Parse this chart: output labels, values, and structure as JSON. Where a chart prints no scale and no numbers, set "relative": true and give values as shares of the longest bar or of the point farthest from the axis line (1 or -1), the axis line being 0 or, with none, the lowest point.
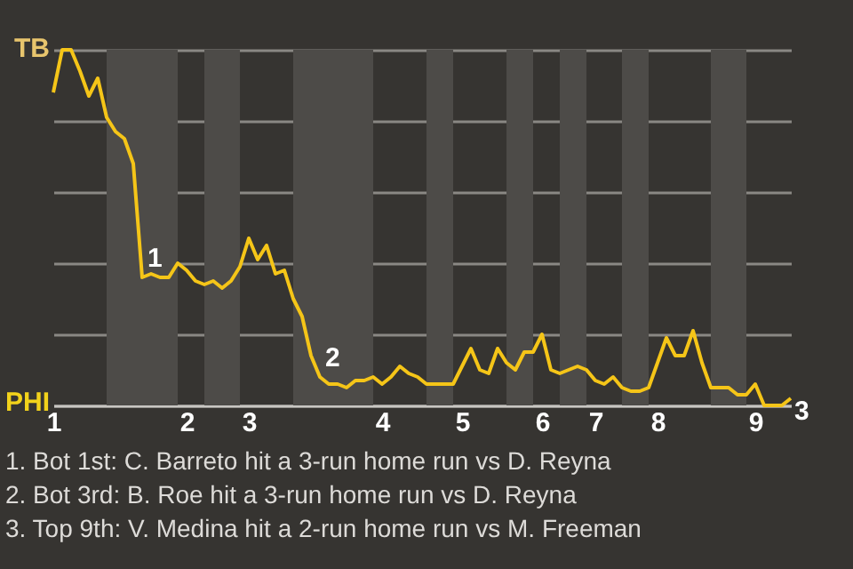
{
  "chart_data": {
    "type": "line",
    "relative": true,
    "categories": [
      "1",
      null,
      null,
      null,
      null,
      null,
      null,
      null,
      null,
      null,
      null,
      null,
      null,
      null,
      null,
      "2",
      null,
      null,
      null,
      null,
      null,
      null,
      "3",
      null,
      null,
      null,
      null,
      null,
      null,
      null,
      null,
      null,
      null,
      null,
      null,
      null,
      null,
      "4",
      null,
      null,
      null,
      null,
      null,
      null,
      null,
      null,
      "5",
      null,
      null,
      null,
      null,
      null,
      null,
      null,
      null,
      "6",
      null,
      null,
      null,
      null,
      null,
      "7",
      null,
      null,
      null,
      null,
      null,
      null,
      "8",
      null,
      null,
      null,
      null,
      null,
      null,
      null,
      null,
      null,
      null,
      "9",
      null,
      null,
      null,
      null
    ],
    "series": [
      {
        "color": "#f5c518",
        "values": [
          0.88,
          1,
          1,
          0.94,
          0.87,
          0.92,
          0.81,
          0.77,
          0.75,
          0.68,
          0.36,
          0.37,
          0.36,
          0.36,
          0.4,
          0.38,
          0.35,
          0.34,
          0.35,
          0.33,
          0.35,
          0.39,
          0.47,
          0.41,
          0.45,
          0.37,
          0.38,
          0.3,
          0.25,
          0.14,
          0.08,
          0.06,
          0.06,
          0.05,
          0.07,
          0.07,
          0.08,
          0.06,
          0.08,
          0.11,
          0.09,
          0.08,
          0.06,
          0.06,
          0.06,
          0.06,
          0.11,
          0.16,
          0.1,
          0.09,
          0.16,
          0.12,
          0.1,
          0.15,
          0.15,
          0.2,
          0.1,
          0.09,
          0.1,
          0.11,
          0.1,
          0.07,
          0.06,
          0.08,
          0.05,
          0.04,
          0.04,
          0.05,
          0.12,
          0.19,
          0.14,
          0.14,
          0.21,
          0.12,
          0.05,
          0.05,
          0.05,
          0.03,
          0.03,
          0.06,
          0,
          0,
          0,
          0.02
        ]
      }
    ],
    "grid": "y",
    "annotations": [
      {
        "text": "1",
        "y": 0.36
      },
      {
        "text": "2",
        "y": 0.08
      },
      "3",
      "TB",
      "PHI",
      "1. Bot 1st: C. Barreto hit a 3-run home run vs D. Reyna",
      "2. Bot 3rd: B. Roe hit a 3-run home run vs D. Reyna",
      "3. Top 9th: V. Medina hit a 2-run home run vs M. Freeman"
    ]
  }
}
